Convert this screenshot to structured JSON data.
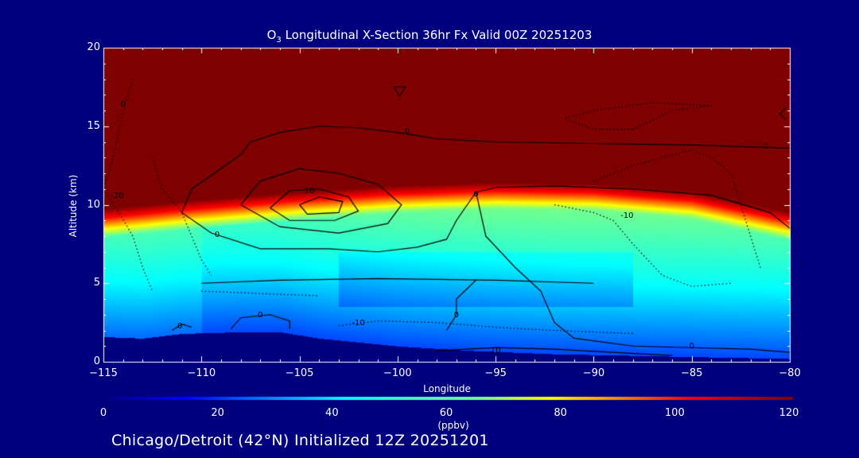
{
  "title_main": "O",
  "title_sub": "3",
  "title_rest": " Longitudinal X-Section 36hr  Fx Valid 00Z 20251203",
  "footer": "Chicago/Detroit (42°N) Initialized 12Z 20251201",
  "colors": {
    "background": "#00007f",
    "low": "#00007f",
    "high": "#7f0000"
  },
  "chart_data": {
    "type": "heatmap",
    "title": "O3 Longitudinal X-Section 36hr  Fx Valid 00Z 20251203",
    "xlabel": "Longitude",
    "ylabel": "Altitude (km)",
    "xlim": [
      -115,
      -80
    ],
    "ylim": [
      0,
      20
    ],
    "x_ticks": [
      -115,
      -110,
      -105,
      -100,
      -95,
      -90,
      -85,
      -80
    ],
    "x_tick_labels": [
      "−115",
      "−110",
      "−105",
      "−100",
      "−95",
      "−90",
      "−85",
      "−80"
    ],
    "y_ticks": [
      0,
      5,
      10,
      15,
      20
    ],
    "y_tick_labels": [
      "0",
      "5",
      "10",
      "15",
      "20"
    ],
    "colorbar": {
      "label": "(ppbv)",
      "range": [
        0,
        120
      ],
      "ticks": [
        0,
        20,
        40,
        60,
        80,
        100,
        120
      ],
      "tick_labels": [
        "0",
        "20",
        "40",
        "60",
        "80",
        "100",
        "120"
      ]
    },
    "tropopause_height_km": {
      "lon": [
        -115,
        -110,
        -105,
        -100,
        -95,
        -90,
        -85,
        -80
      ],
      "alt": [
        9.2,
        9.8,
        10.3,
        10.7,
        10.9,
        10.8,
        10.3,
        9.0
      ]
    },
    "terrain_height_km": {
      "lon": [
        -115,
        -113,
        -111,
        -108,
        -106,
        -104,
        -100,
        -96,
        -92,
        -88,
        -84,
        -80
      ],
      "alt": [
        1.6,
        1.5,
        1.8,
        1.9,
        1.9,
        1.5,
        1.0,
        0.7,
        0.5,
        0.4,
        0.3,
        0.2
      ]
    },
    "contour_labels": [
      "0",
      "10",
      "-10",
      "-20"
    ],
    "contour_annotations": [
      {
        "text": "0",
        "lon": -114,
        "alt": 16.3
      },
      {
        "text": "-20",
        "lon": -114.3,
        "alt": 10.5
      },
      {
        "text": "0",
        "lon": -99.5,
        "alt": 14.6
      },
      {
        "text": "10",
        "lon": -104.5,
        "alt": 10.8
      },
      {
        "text": "0",
        "lon": -109.2,
        "alt": 8.0
      },
      {
        "text": "0",
        "lon": -96,
        "alt": 10.6
      },
      {
        "text": "-10",
        "lon": -88.3,
        "alt": 9.2
      },
      {
        "text": "0",
        "lon": -81.2,
        "alt": 13.6
      },
      {
        "text": "0",
        "lon": -107,
        "alt": 2.9
      },
      {
        "text": "0",
        "lon": -111.1,
        "alt": 2.2
      },
      {
        "text": "-10",
        "lon": -102,
        "alt": 2.4
      },
      {
        "text": "0",
        "lon": -97,
        "alt": 2.9
      },
      {
        "text": "10",
        "lon": -95,
        "alt": 0.6
      },
      {
        "text": "0",
        "lon": -85,
        "alt": 0.9
      }
    ]
  }
}
